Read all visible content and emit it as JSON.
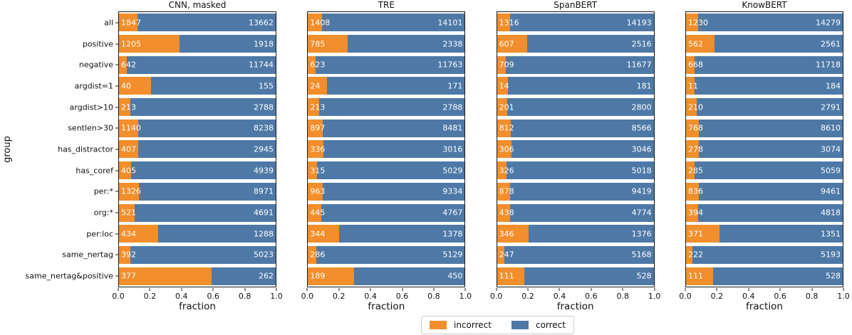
{
  "figure": {
    "ylabel": "group",
    "legend": {
      "items": [
        {
          "label": "incorrect",
          "color": "#f28e2b"
        },
        {
          "label": "correct",
          "color": "#4e79a7"
        }
      ]
    }
  },
  "chart_data": {
    "type": "bar",
    "orientation": "horizontal",
    "stacked": true,
    "normalized_to_fraction": true,
    "xlabel": "fraction",
    "ylabel": "group",
    "xlim": [
      0.0,
      1.0
    ],
    "xticks": [
      "0.0",
      "0.2",
      "0.4",
      "0.6",
      "0.8",
      "1.0"
    ],
    "grid": false,
    "legend_position": "bottom-center",
    "series_names": [
      "incorrect",
      "correct"
    ],
    "colors": {
      "incorrect": "#f28e2b",
      "correct": "#4e79a7"
    },
    "categories": [
      "all",
      "positive",
      "negative",
      "argdist=1",
      "argdist>10",
      "sentlen>30",
      "has_distractor",
      "has_coref",
      "per:*",
      "org:*",
      "per:loc",
      "same_nertag",
      "same_nertag&positive"
    ],
    "panels": [
      {
        "title": "CNN, masked",
        "series": [
          {
            "name": "incorrect",
            "values": [
              1847,
              1205,
              642,
              40,
              213,
              1140,
              407,
              405,
              1326,
              521,
              434,
              392,
              377
            ]
          },
          {
            "name": "correct",
            "values": [
              13662,
              1918,
              11744,
              155,
              2788,
              8238,
              2945,
              4939,
              8971,
              4691,
              1288,
              5023,
              262
            ]
          }
        ]
      },
      {
        "title": "TRE",
        "series": [
          {
            "name": "incorrect",
            "values": [
              1408,
              785,
              623,
              24,
              213,
              897,
              336,
              315,
              963,
              445,
              344,
              286,
              189
            ]
          },
          {
            "name": "correct",
            "values": [
              14101,
              2338,
              11763,
              171,
              2788,
              8481,
              3016,
              5029,
              9334,
              4767,
              1378,
              5129,
              450
            ]
          }
        ]
      },
      {
        "title": "SpanBERT",
        "series": [
          {
            "name": "incorrect",
            "values": [
              1316,
              607,
              709,
              14,
              201,
              812,
              306,
              326,
              878,
              438,
              346,
              247,
              111
            ]
          },
          {
            "name": "correct",
            "values": [
              14193,
              2516,
              11677,
              181,
              2800,
              8566,
              3046,
              5018,
              9419,
              4774,
              1376,
              5168,
              528
            ]
          }
        ]
      },
      {
        "title": "KnowBERT",
        "series": [
          {
            "name": "incorrect",
            "values": [
              1230,
              562,
              668,
              11,
              210,
              768,
              278,
              285,
              836,
              394,
              371,
              222,
              111
            ]
          },
          {
            "name": "correct",
            "values": [
              14279,
              2561,
              11718,
              184,
              2791,
              8610,
              3074,
              5059,
              9461,
              4818,
              1351,
              5193,
              528
            ]
          }
        ]
      }
    ]
  }
}
